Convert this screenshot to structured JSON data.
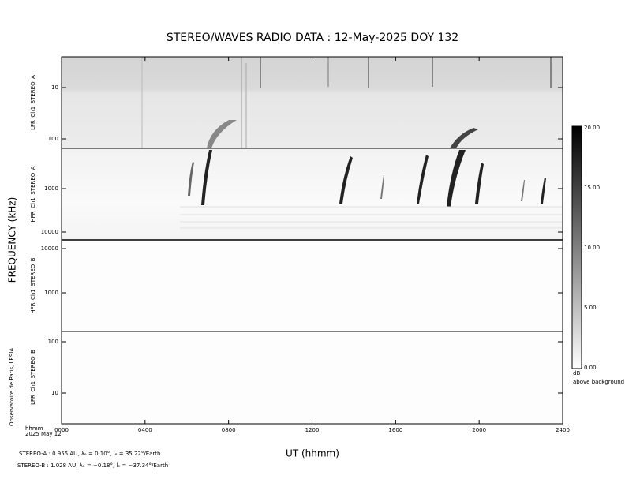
{
  "title": "STEREO/WAVES  RADIO  DATA : 12-May-2025  DOY 132",
  "y_axis_label": "FREQUENCY (kHz)",
  "x_axis_label": "UT (hhmm)",
  "x_ticks": [
    "0000",
    "0400",
    "0800",
    "1200",
    "1600",
    "2000",
    "2400"
  ],
  "x_corner": [
    "hhmm",
    "2025 May 12"
  ],
  "panels": [
    {
      "label": "LFR_Ch1_STEREO_A",
      "ticks": [
        "10",
        "100"
      ]
    },
    {
      "label": "HFR_Ch1_STEREO_A",
      "ticks": [
        "1000",
        "10000"
      ]
    },
    {
      "label": "HFR_Ch1_STEREO_B",
      "ticks": [
        "10000",
        "1000"
      ]
    },
    {
      "label": "LFR_Ch1_STEREO_B",
      "ticks": [
        "100",
        "10"
      ]
    }
  ],
  "colorbar": {
    "ticks": [
      "20.00",
      "15.00",
      "10.00",
      "5.00",
      "0.00"
    ],
    "unit": "dB",
    "caption": "above background"
  },
  "credit": "Observatoire de Paris, LESIA",
  "footer": [
    "STEREO-A : 0.955 AU, λₑ = 0.10°, lₑ = 35.22°/Earth",
    "STEREO-B : 1.028 AU, λₑ = −0.18°, lₑ = −37.34°/Earth"
  ]
}
